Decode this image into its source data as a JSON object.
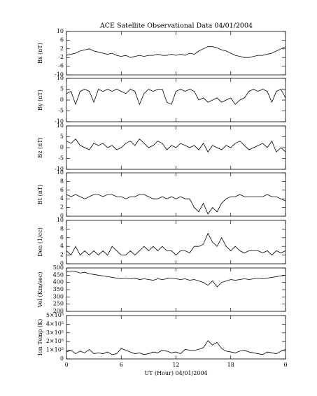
{
  "chart_data": [
    {
      "type": "line",
      "title": "ACE Satellite Observational Data   04/01/2004",
      "ylabel": "Bx (nT)",
      "color": "#000000",
      "x": [
        0,
        0.5,
        1,
        1.5,
        2,
        2.5,
        3,
        3.5,
        4,
        4.5,
        5,
        5.5,
        6,
        6.5,
        7,
        7.5,
        8,
        8.5,
        9,
        9.5,
        10,
        10.5,
        11,
        11.5,
        12,
        12.5,
        13,
        13.5,
        14,
        14.5,
        15,
        15.5,
        16,
        16.5,
        17,
        17.5,
        18,
        18.5,
        19,
        19.5,
        20,
        20.5,
        21,
        21.5,
        22,
        22.5,
        23,
        23.5,
        24
      ],
      "values": [
        -1,
        -0.5,
        0,
        1,
        1.5,
        2,
        1,
        0.5,
        0,
        -0.5,
        0,
        -1,
        -1.5,
        -1,
        -2,
        -1.5,
        -1,
        -1.5,
        -1,
        -1,
        -0.5,
        -1,
        -1,
        -0.5,
        -1,
        -0.5,
        -1,
        0,
        -0.5,
        1,
        2,
        3,
        3,
        2.5,
        1.5,
        1,
        0,
        -1,
        -1.5,
        -2,
        -2,
        -1.5,
        -1,
        -1,
        -0.5,
        0,
        1,
        2,
        3
      ],
      "ylim": [
        -10,
        10
      ],
      "yticks": [
        10,
        6,
        2,
        -2,
        -6,
        -10
      ]
    },
    {
      "type": "line",
      "ylabel": "By (nT)",
      "color": "#000000",
      "x": [
        0,
        0.5,
        1,
        1.5,
        2,
        2.5,
        3,
        3.5,
        4,
        4.5,
        5,
        5.5,
        6,
        6.5,
        7,
        7.5,
        8,
        8.5,
        9,
        9.5,
        10,
        10.5,
        11,
        11.5,
        12,
        12.5,
        13,
        13.5,
        14,
        14.5,
        15,
        15.5,
        16,
        16.5,
        17,
        17.5,
        18,
        18.5,
        19,
        19.5,
        20,
        20.5,
        21,
        21.5,
        22,
        22.5,
        23,
        23.5,
        24
      ],
      "values": [
        3,
        4,
        -2,
        4,
        5,
        4,
        -1,
        5,
        4,
        5,
        4,
        5,
        4,
        3,
        5,
        4,
        -2,
        3,
        5,
        4,
        5,
        5,
        -1,
        -2,
        4,
        5,
        4,
        5,
        4,
        0,
        1,
        -1,
        0,
        1,
        -1,
        0,
        1,
        -2,
        0,
        1,
        4,
        5,
        4,
        5,
        4,
        -1,
        4,
        5,
        1
      ],
      "ylim": [
        -10,
        10
      ],
      "yticks": [
        10,
        5,
        0,
        -5,
        -10
      ]
    },
    {
      "type": "line",
      "ylabel": "Bz (nT)",
      "color": "#000000",
      "x": [
        0,
        0.5,
        1,
        1.5,
        2,
        2.5,
        3,
        3.5,
        4,
        4.5,
        5,
        5.5,
        6,
        6.5,
        7,
        7.5,
        8,
        8.5,
        9,
        9.5,
        10,
        10.5,
        11,
        11.5,
        12,
        12.5,
        13,
        13.5,
        14,
        14.5,
        15,
        15.5,
        16,
        16.5,
        17,
        17.5,
        18,
        18.5,
        19,
        19.5,
        20,
        20.5,
        21,
        21.5,
        22,
        22.5,
        23,
        23.5,
        24
      ],
      "values": [
        3,
        2,
        4,
        1,
        0,
        -1,
        2,
        1,
        2,
        0,
        1,
        -1,
        0,
        2,
        3,
        1,
        4,
        2,
        0,
        1,
        3,
        2,
        -1,
        1,
        0,
        2,
        1,
        0,
        1,
        -1,
        2,
        -2,
        1,
        0,
        -1,
        1,
        0,
        2,
        3,
        1,
        -1,
        0,
        1,
        2,
        0,
        3,
        -2,
        0,
        -2
      ],
      "ylim": [
        -10,
        10
      ],
      "yticks": [
        10,
        5,
        0,
        -5,
        -10
      ]
    },
    {
      "type": "line",
      "ylabel": "Bt (nT)",
      "color": "#000000",
      "x": [
        0,
        0.5,
        1,
        1.5,
        2,
        2.5,
        3,
        3.5,
        4,
        4.5,
        5,
        5.5,
        6,
        6.5,
        7,
        7.5,
        8,
        8.5,
        9,
        9.5,
        10,
        10.5,
        11,
        11.5,
        12,
        12.5,
        13,
        13.5,
        14,
        14.5,
        15,
        15.5,
        16,
        16.5,
        17,
        17.5,
        18,
        18.5,
        19,
        19.5,
        20,
        20.5,
        21,
        21.5,
        22,
        22.5,
        23,
        23.5,
        24
      ],
      "values": [
        5,
        4.5,
        5,
        4.5,
        4,
        4.5,
        5,
        5,
        4.5,
        5,
        5,
        4.5,
        4.5,
        4,
        4.5,
        4.5,
        5,
        5,
        4.5,
        4,
        4,
        4.5,
        4,
        4.5,
        4,
        4.5,
        4,
        4,
        2,
        1,
        3,
        0.5,
        2,
        1,
        3,
        4,
        4.5,
        4.5,
        5,
        4.5,
        4.5,
        4.5,
        4.5,
        4.5,
        5,
        4.5,
        4.5,
        4,
        3.5
      ],
      "ylim": [
        0,
        10
      ],
      "yticks": [
        10,
        8,
        6,
        4,
        2,
        0
      ]
    },
    {
      "type": "line",
      "ylabel": "Den (1/cc)",
      "color": "#000000",
      "x": [
        0,
        0.5,
        1,
        1.5,
        2,
        2.5,
        3,
        3.5,
        4,
        4.5,
        5,
        5.5,
        6,
        6.5,
        7,
        7.5,
        8,
        8.5,
        9,
        9.5,
        10,
        10.5,
        11,
        11.5,
        12,
        12.5,
        13,
        13.5,
        14,
        14.5,
        15,
        15.5,
        16,
        16.5,
        17,
        17.5,
        18,
        18.5,
        19,
        19.5,
        20,
        20.5,
        21,
        21.5,
        22,
        22.5,
        23,
        23.5,
        24
      ],
      "values": [
        3,
        2,
        4,
        2,
        3,
        2,
        3,
        2,
        3,
        2,
        4,
        3,
        2,
        2,
        3,
        2,
        3,
        4,
        3,
        4,
        3,
        4,
        3,
        3,
        2,
        3,
        3,
        2.5,
        4,
        4,
        4.5,
        7,
        5,
        4,
        6,
        4,
        3,
        4,
        3,
        2.5,
        3,
        3,
        3,
        2.5,
        3,
        2,
        3,
        2.5,
        3
      ],
      "ylim": [
        0,
        10
      ],
      "yticks": [
        10,
        8,
        6,
        4,
        2,
        0
      ]
    },
    {
      "type": "line",
      "ylabel": "Vel (Km/sec)",
      "color": "#000000",
      "x": [
        0,
        0.5,
        1,
        1.5,
        2,
        2.5,
        3,
        3.5,
        4,
        4.5,
        5,
        5.5,
        6,
        6.5,
        7,
        7.5,
        8,
        8.5,
        9,
        9.5,
        10,
        10.5,
        11,
        11.5,
        12,
        12.5,
        13,
        13.5,
        14,
        14.5,
        15,
        15.5,
        16,
        16.5,
        17,
        17.5,
        18,
        18.5,
        19,
        19.5,
        20,
        20.5,
        21,
        21.5,
        22,
        22.5,
        23,
        23.5,
        24
      ],
      "values": [
        470,
        480,
        475,
        465,
        470,
        460,
        455,
        450,
        445,
        440,
        435,
        430,
        425,
        430,
        425,
        430,
        420,
        425,
        420,
        415,
        425,
        420,
        425,
        430,
        425,
        420,
        425,
        415,
        420,
        410,
        400,
        380,
        410,
        370,
        400,
        410,
        420,
        415,
        420,
        425,
        420,
        425,
        430,
        425,
        430,
        435,
        440,
        445,
        450
      ],
      "ylim": [
        200,
        500
      ],
      "yticks": [
        500,
        450,
        400,
        350,
        300,
        250,
        200
      ]
    },
    {
      "type": "line",
      "ylabel": "Ion Temp (K)",
      "xlabel": "UT (Hour)  04/01/2004",
      "color": "#000000",
      "x": [
        0,
        0.5,
        1,
        1.5,
        2,
        2.5,
        3,
        3.5,
        4,
        4.5,
        5,
        5.5,
        6,
        6.5,
        7,
        7.5,
        8,
        8.5,
        9,
        9.5,
        10,
        10.5,
        11,
        11.5,
        12,
        12.5,
        13,
        13.5,
        14,
        14.5,
        15,
        15.5,
        16,
        16.5,
        17,
        17.5,
        18,
        18.5,
        19,
        19.5,
        20,
        20.5,
        21,
        21.5,
        22,
        22.5,
        23,
        23.5,
        24
      ],
      "values": [
        80000,
        100000,
        60000,
        90000,
        70000,
        110000,
        60000,
        70000,
        60000,
        80000,
        50000,
        60000,
        120000,
        100000,
        80000,
        60000,
        70000,
        50000,
        60000,
        80000,
        70000,
        100000,
        90000,
        70000,
        80000,
        60000,
        110000,
        100000,
        100000,
        110000,
        130000,
        210000,
        160000,
        190000,
        120000,
        90000,
        80000,
        70000,
        90000,
        100000,
        80000,
        70000,
        60000,
        50000,
        80000,
        70000,
        60000,
        90000,
        110000
      ],
      "ylim": [
        0,
        500000
      ],
      "yticks": [
        {
          "value": 500000,
          "label": "5×10⁵"
        },
        {
          "value": 400000,
          "label": "4×10⁵"
        },
        {
          "value": 300000,
          "label": "3×10⁵"
        },
        {
          "value": 200000,
          "label": "2×10⁵"
        },
        {
          "value": 100000,
          "label": "1×10⁵"
        },
        0
      ],
      "xlim": [
        0,
        24
      ],
      "xticks": [
        0,
        6,
        12,
        18,
        {
          "value": 24,
          "label": "0"
        }
      ]
    }
  ]
}
